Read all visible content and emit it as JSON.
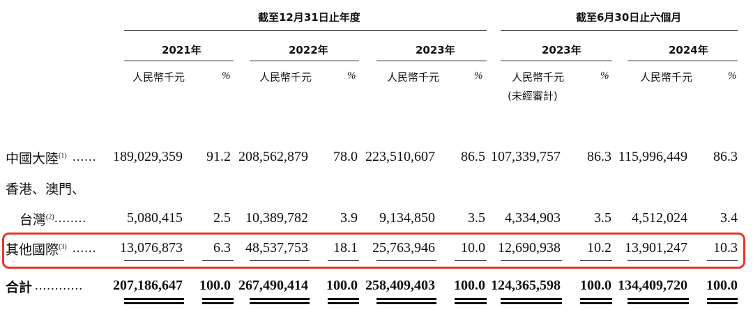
{
  "header": {
    "group_year": "截至12月31日止年度",
    "group_half": "截至6月30日止六個月"
  },
  "years": {
    "y2021": "2021年",
    "y2022": "2022年",
    "y2023": "2023年",
    "h2023": "2023年",
    "h2024": "2024年"
  },
  "units": {
    "rmb": "人民幣千元",
    "pct": "%",
    "unaudited": "(未經審計)"
  },
  "rows": {
    "mainland": {
      "label": "中國大陸",
      "note": "(1)",
      "dots": "......",
      "values": [
        "189,029,359",
        "91.2",
        "208,562,879",
        "78.0",
        "223,510,607",
        "86.5",
        "107,339,757",
        "86.3",
        "115,996,449",
        "86.3"
      ]
    },
    "hk": {
      "label_line1": "香港、澳門、",
      "label_line2": "台灣",
      "note": "(2)",
      "dots": "........",
      "values": [
        "5,080,415",
        "2.5",
        "10,389,782",
        "3.9",
        "9,134,850",
        "3.5",
        "4,334,903",
        "3.5",
        "4,512,024",
        "3.4"
      ]
    },
    "other": {
      "label": "其他國際",
      "note": "(3)",
      "dots": "......",
      "values": [
        "13,076,873",
        "6.3",
        "48,537,753",
        "18.1",
        "25,763,946",
        "10.0",
        "12,690,938",
        "10.2",
        "13,901,247",
        "10.3"
      ]
    },
    "total": {
      "label": "合計",
      "dots": "............",
      "values": [
        "207,186,647",
        "100.0",
        "267,490,414",
        "100.0",
        "258,409,403",
        "100.0",
        "124,365,598",
        "100.0",
        "134,409,720",
        "100.0"
      ]
    }
  },
  "colors": {
    "highlight": "#e5352b"
  }
}
